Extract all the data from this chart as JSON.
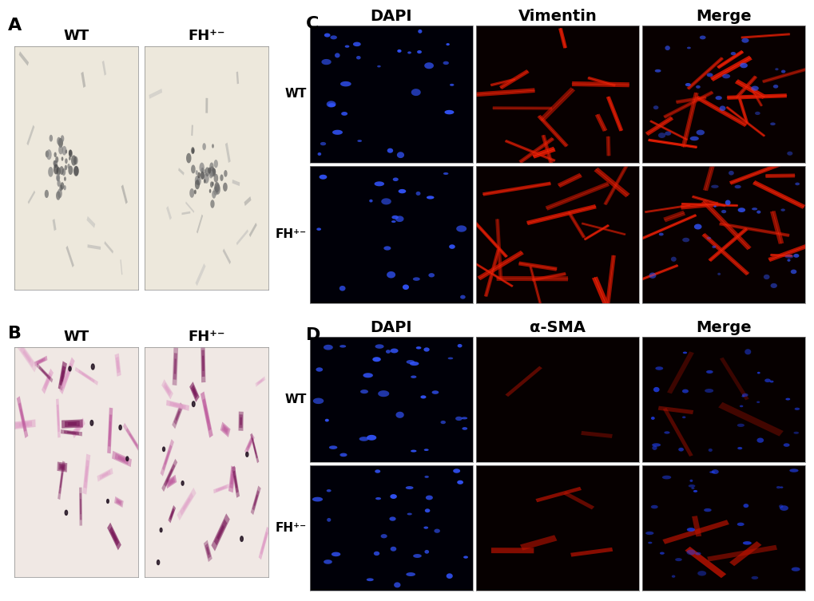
{
  "panel_labels": [
    "A",
    "B",
    "C",
    "D"
  ],
  "panel_label_fontsize": 16,
  "panel_label_fontweight": "bold",
  "row_labels_C": [
    "WT",
    "FH⁺⁻"
  ],
  "row_labels_D": [
    "WT",
    "FH⁺⁻"
  ],
  "col_labels_C": [
    "DAPI",
    "Vimentin",
    "Merge"
  ],
  "col_labels_D": [
    "DAPI",
    "α-SMA",
    "Merge"
  ],
  "col_label_fontsize": 14,
  "col_label_fontweight": "bold",
  "row_label_fontsize": 11,
  "row_label_fontweight": "bold",
  "AB_wt_label": "WT",
  "AB_fh_label": "FH⁺⁻",
  "AB_label_fontsize": 13,
  "AB_label_fontweight": "bold",
  "bg_color": "#ffffff",
  "panel_A_bg": "#ede8dc",
  "panel_B_bg": "#f0e8e4",
  "img_border_color": "#888888",
  "img_border_lw": 0.5
}
